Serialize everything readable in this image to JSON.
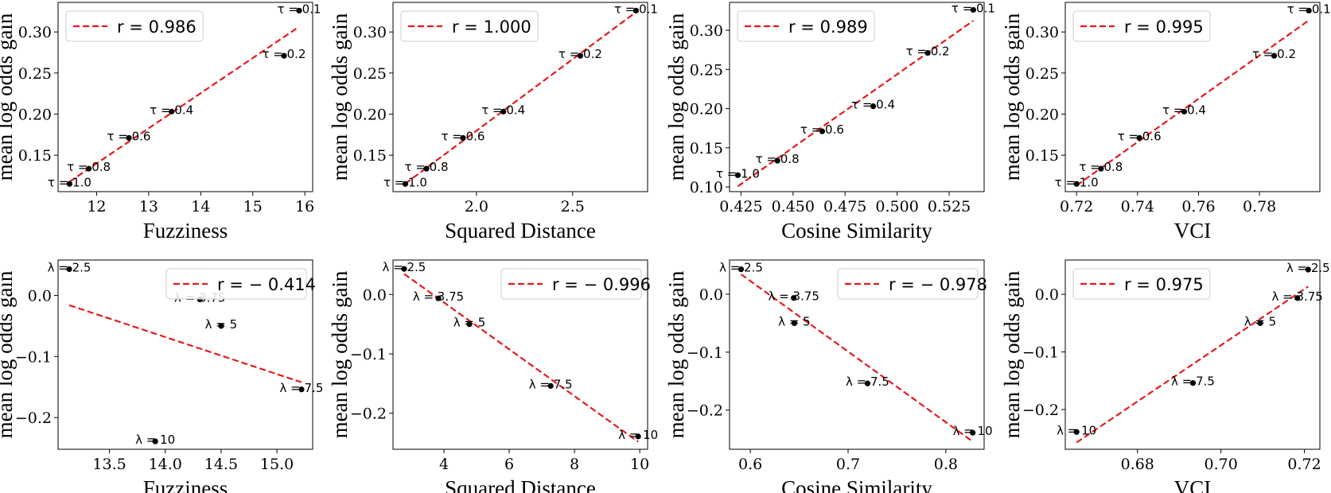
{
  "colors": {
    "fit_line": "#e41a1c",
    "points": "#000000",
    "legend_border": "#cccccc"
  },
  "chart_data": [
    {
      "type": "scatter",
      "xlabel": "Fuzziness",
      "ylabel": "mean log odds gain",
      "legend": "r = 0.986",
      "legend_loc": "upper-left",
      "xlim": [
        11.26,
        16.15
      ],
      "ylim": [
        0.1056,
        0.336
      ],
      "xticks": [
        12,
        13,
        14,
        15,
        16
      ],
      "xtick_labels": [
        "12",
        "13",
        "14",
        "15",
        "16"
      ],
      "yticks": [
        0.15,
        0.2,
        0.25,
        0.3
      ],
      "ytick_labels": [
        "0.15",
        "0.20",
        "0.25",
        "0.30"
      ],
      "labels": [
        "τ = 1.0",
        "τ = 0.8",
        "τ = 0.6",
        "τ = 0.4",
        "τ = 0.2",
        "τ = 0.1"
      ],
      "x": [
        11.48,
        11.85,
        12.62,
        13.44,
        15.6,
        15.89
      ],
      "y": [
        0.115,
        0.1335,
        0.171,
        0.203,
        0.271,
        0.326
      ]
    },
    {
      "type": "scatter",
      "xlabel": "Squared Distance",
      "ylabel": "mean log odds gain",
      "legend": "r = 1.000",
      "legend_loc": "upper-left",
      "xlim": [
        1.566,
        2.89
      ],
      "ylim": [
        0.1056,
        0.336
      ],
      "xticks": [
        2.0,
        2.5
      ],
      "xtick_labels": [
        "2.0",
        "2.5"
      ],
      "yticks": [
        0.15,
        0.2,
        0.25,
        0.3
      ],
      "ytick_labels": [
        "0.15",
        "0.20",
        "0.25",
        "0.30"
      ],
      "labels": [
        "τ = 1.0",
        "τ = 0.8",
        "τ = 0.6",
        "τ = 0.4",
        "τ = 0.2",
        "τ = 0.1"
      ],
      "x": [
        1.63,
        1.74,
        1.93,
        2.14,
        2.54,
        2.83
      ],
      "y": [
        0.115,
        0.1335,
        0.171,
        0.203,
        0.271,
        0.326
      ]
    },
    {
      "type": "scatter",
      "xlabel": "Cosine Similarity",
      "ylabel": "mean log odds gain",
      "legend": "r = 0.989",
      "legend_loc": "upper-left",
      "xlim": [
        0.4195,
        0.5418
      ],
      "ylim": [
        0.094,
        0.3356
      ],
      "xticks": [
        0.425,
        0.45,
        0.475,
        0.5,
        0.525
      ],
      "xtick_labels": [
        "0.425",
        "0.450",
        "0.475",
        "0.500",
        "0.525"
      ],
      "yticks": [
        0.1,
        0.15,
        0.2,
        0.25,
        0.3
      ],
      "ytick_labels": [
        "0.10",
        "0.15",
        "0.20",
        "0.25",
        "0.30"
      ],
      "labels": [
        "τ = 1.0",
        "τ = 0.8",
        "τ = 0.6",
        "τ = 0.4",
        "τ = 0.2",
        "τ = 0.1"
      ],
      "x": [
        0.4235,
        0.4425,
        0.464,
        0.4885,
        0.5147,
        0.5366
      ],
      "y": [
        0.115,
        0.1335,
        0.171,
        0.203,
        0.271,
        0.326
      ]
    },
    {
      "type": "scatter",
      "xlabel": "VCI",
      "ylabel": "mean log odds gain",
      "legend": "r = 0.995",
      "legend_loc": "upper-left",
      "xlim": [
        0.7163,
        0.7998
      ],
      "ylim": [
        0.1056,
        0.336
      ],
      "xticks": [
        0.72,
        0.74,
        0.76,
        0.78
      ],
      "xtick_labels": [
        "0.72",
        "0.74",
        "0.76",
        "0.78"
      ],
      "yticks": [
        0.15,
        0.2,
        0.25,
        0.3
      ],
      "ytick_labels": [
        "0.15",
        "0.20",
        "0.25",
        "0.30"
      ],
      "labels": [
        "τ = 1.0",
        "τ = 0.8",
        "τ = 0.6",
        "τ = 0.4",
        "τ = 0.2",
        "τ = 0.1"
      ],
      "x": [
        0.72,
        0.728,
        0.7406,
        0.7553,
        0.7848,
        0.7962
      ],
      "y": [
        0.115,
        0.1335,
        0.171,
        0.203,
        0.271,
        0.326
      ]
    },
    {
      "type": "scatter",
      "xlabel": "Fuzziness",
      "ylabel": "mean log odds gain",
      "legend": "r = − 0.414",
      "legend_loc": "upper-right",
      "xlim": [
        13.04,
        15.32
      ],
      "ylim": [
        -0.252,
        0.058
      ],
      "xticks": [
        13.5,
        14.0,
        14.5,
        15.0
      ],
      "xtick_labels": [
        "13.5",
        "14.0",
        "14.5",
        "15.0"
      ],
      "yticks": [
        -0.2,
        -0.1,
        0.0
      ],
      "ytick_labels": [
        "−0.2",
        "−0.1",
        "0.0"
      ],
      "labels": [
        "λ = 2.5",
        "λ = 3.75",
        "λ = 5",
        "λ = 7.5",
        "λ = 10"
      ],
      "x": [
        13.14,
        14.31,
        14.5,
        15.22,
        13.91
      ],
      "y": [
        0.043,
        -0.0065,
        -0.05,
        -0.154,
        -0.239
      ]
    },
    {
      "type": "scatter",
      "xlabel": "Squared Distance",
      "ylabel": "mean log odds gain",
      "legend": "r = − 0.996",
      "legend_loc": "upper-right",
      "xlim": [
        2.44,
        10.24
      ],
      "ylim": [
        -0.2606,
        0.058
      ],
      "xticks": [
        4,
        6,
        8,
        10
      ],
      "xtick_labels": [
        "4",
        "6",
        "8",
        "10"
      ],
      "yticks": [
        -0.2,
        -0.1,
        0.0
      ],
      "ytick_labels": [
        "−0.2",
        "−0.1",
        "0.0"
      ],
      "labels": [
        "λ = 2.5",
        "λ = 3.75",
        "λ = 5",
        "λ = 7.5",
        "λ = 10"
      ],
      "x": [
        2.78,
        3.83,
        4.78,
        7.27,
        9.95
      ],
      "y": [
        0.043,
        -0.0065,
        -0.05,
        -0.154,
        -0.239
      ]
    },
    {
      "type": "scatter",
      "xlabel": "Cosine Similarity",
      "ylabel": "mean log odds gain",
      "legend": "r = − 0.978",
      "legend_loc": "upper-right",
      "xlim": [
        0.5787,
        0.8392
      ],
      "ylim": [
        -0.2676,
        0.059
      ],
      "xticks": [
        0.6,
        0.7,
        0.8
      ],
      "xtick_labels": [
        "0.6",
        "0.7",
        "0.8"
      ],
      "yticks": [
        -0.2,
        -0.1,
        0.0
      ],
      "ytick_labels": [
        "−0.2",
        "−0.1",
        "0.0"
      ],
      "labels": [
        "λ = 2.5",
        "λ = 3.75",
        "λ = 5",
        "λ = 7.5",
        "λ = 10"
      ],
      "x": [
        0.5905,
        0.6444,
        0.645,
        0.7199,
        0.8275
      ],
      "y": [
        0.043,
        -0.0065,
        -0.05,
        -0.154,
        -0.239
      ]
    },
    {
      "type": "scatter",
      "xlabel": "VCI",
      "ylabel": "mean log odds gain",
      "legend": "r = 0.975",
      "legend_loc": "upper-left",
      "xlim": [
        0.6627,
        0.7237
      ],
      "ylim": [
        -0.269,
        0.0596
      ],
      "xticks": [
        0.68,
        0.7,
        0.72
      ],
      "xtick_labels": [
        "0.68",
        "0.70",
        "0.72"
      ],
      "yticks": [
        -0.2,
        -0.1,
        0.0
      ],
      "ytick_labels": [
        "−0.2",
        "−0.1",
        "0.0"
      ],
      "labels": [
        "λ = 2.5",
        "λ = 3.75",
        "λ = 5",
        "λ = 7.5",
        "λ = 10"
      ],
      "x": [
        0.7209,
        0.7183,
        0.7094,
        0.6933,
        0.6654
      ],
      "y": [
        0.043,
        -0.0065,
        -0.05,
        -0.154,
        -0.239
      ]
    }
  ]
}
